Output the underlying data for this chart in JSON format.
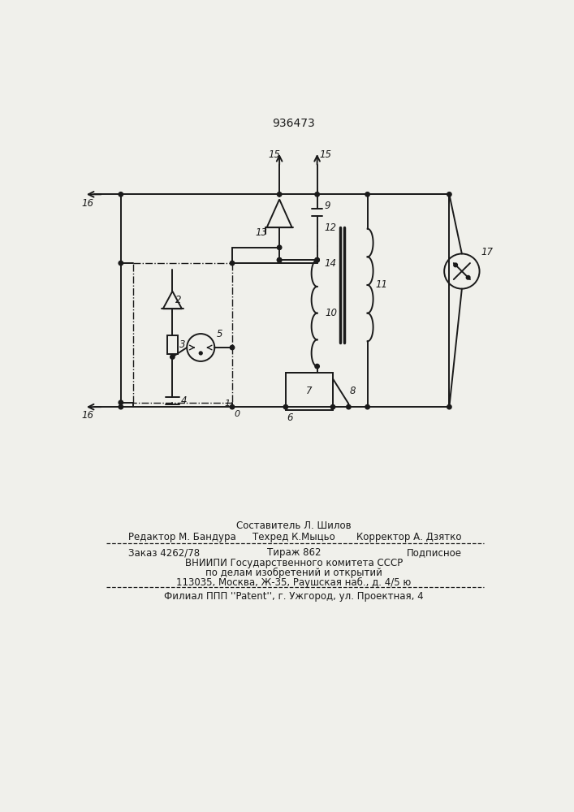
{
  "patent_number": "936473",
  "bg_color": "#f0f0eb",
  "line_color": "#1a1a1a",
  "footer_line0_center": "Составитель Л. Шилов",
  "footer_line1_left": "Редактор М. Бандура",
  "footer_line1_center": "Техред К.Мыцьо",
  "footer_line1_right": "Корректор А. Дзятко",
  "footer_line2_left": "Заказ 4262/78",
  "footer_line2_center": "Тираж 862",
  "footer_line2_right": "Подписное",
  "footer_line3": "ВНИИПИ Государственного комитета СССР",
  "footer_line4": "по делам изобретений и открытий",
  "footer_line5": "113035, Москва, Ж-35, Раушская наб., д. 4/5 ю",
  "footer_line6": "Филиал ППП ''Patent'', г. Ужгород, ул. Проектная, 4"
}
